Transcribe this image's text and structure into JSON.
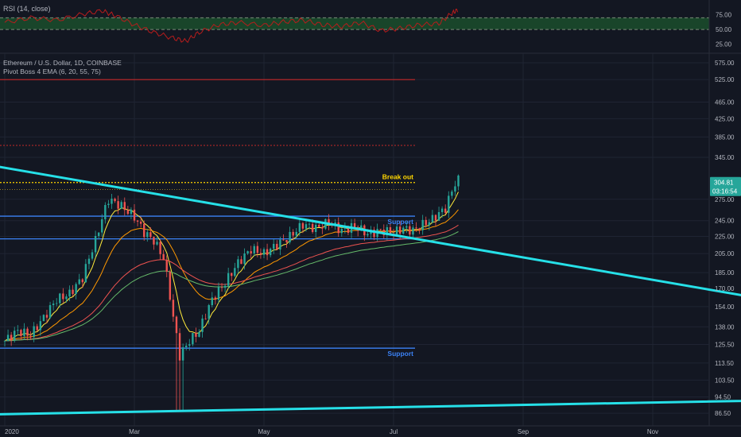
{
  "rsi_panel": {
    "title": "RSI (14, close)",
    "levels": [
      "75.00",
      "50.00",
      "25.00"
    ],
    "level_values": [
      75,
      50,
      25
    ],
    "band": [
      50,
      70
    ],
    "ylim": [
      12,
      95
    ]
  },
  "main_panel": {
    "symbol_title": "Ethereum / U.S. Dollar, 1D, COINBASE",
    "indicator": "Pivot Boss 4 EMA (6, 20, 55, 75)",
    "price_ticks": [
      "575.00",
      "525.00",
      "465.00",
      "425.00",
      "385.00",
      "345.00",
      "275.00",
      "245.00",
      "225.00",
      "205.00",
      "185.00",
      "170.00",
      "154.00",
      "138.00",
      "125.50",
      "113.50",
      "103.50",
      "94.50",
      "86.50"
    ],
    "price_tick_values": [
      575,
      525,
      465,
      425,
      385,
      345,
      275,
      245,
      225,
      205,
      185,
      170,
      154,
      138,
      125.5,
      113.5,
      103.5,
      94.5,
      86.5
    ],
    "last_price": "304.81",
    "countdown": "03:16:54",
    "time_ticks": [
      "2020",
      "Mar",
      "May",
      "Jul",
      "Sep",
      "Nov",
      "2021",
      "Mar",
      "May",
      "Jul",
      "Sep",
      "Nov"
    ],
    "annotations": {
      "breakout": "Break out",
      "support_upper": "Support",
      "support_lower": "Support"
    },
    "levels": {
      "red_line": 525,
      "red_dotted": 368,
      "breakout_dotted": 301,
      "last_dotted": 290,
      "support_upper_a": 251,
      "support_upper_b": 222,
      "support_lower": 123
    }
  },
  "colors": {
    "background": "#131722",
    "grid": "#1f2433",
    "text": "#b2b5be",
    "cyan_trend": "#26e0e8",
    "support_blue": "#3b82f6",
    "breakout_yellow": "#ffd600",
    "red_line": "#c62828",
    "rsi_line": "#b71c1c",
    "rsi_band": "#1b4d2b",
    "price_tag": "#26a69a",
    "candle_up": "#26a69a",
    "candle_down": "#ef5350",
    "ema_colors": [
      "#ffeb3b",
      "#ff9800",
      "#ef5350",
      "#66bb6a"
    ]
  },
  "chart_data": {
    "type": "candlestick",
    "title": "Ethereum / U.S. Dollar, 1D, COINBASE",
    "x_unit": "month_index_from_Jan_2020",
    "xlim": [
      0.0,
      23.6
    ],
    "ylim_log": [
      84,
      590
    ],
    "close_path": [
      [
        0.0,
        128
      ],
      [
        0.2,
        135
      ],
      [
        0.4,
        132
      ],
      [
        0.6,
        145
      ],
      [
        0.8,
        160
      ],
      [
        1.0,
        165
      ],
      [
        1.2,
        180
      ],
      [
        1.4,
        220
      ],
      [
        1.6,
        275
      ],
      [
        1.8,
        265
      ],
      [
        2.0,
        250
      ],
      [
        2.15,
        230
      ],
      [
        2.3,
        220
      ],
      [
        2.45,
        200
      ],
      [
        2.6,
        145
      ],
      [
        2.7,
        118
      ],
      [
        2.85,
        128
      ],
      [
        3.0,
        135
      ],
      [
        3.2,
        160
      ],
      [
        3.4,
        175
      ],
      [
        3.6,
        195
      ],
      [
        3.8,
        210
      ],
      [
        4.0,
        205
      ],
      [
        4.2,
        215
      ],
      [
        4.4,
        225
      ],
      [
        4.6,
        240
      ],
      [
        4.8,
        235
      ],
      [
        5.0,
        243
      ],
      [
        5.2,
        232
      ],
      [
        5.4,
        238
      ],
      [
        5.6,
        228
      ],
      [
        5.8,
        232
      ],
      [
        6.0,
        230
      ],
      [
        6.15,
        235
      ],
      [
        6.3,
        232
      ],
      [
        6.45,
        240
      ],
      [
        6.6,
        247
      ],
      [
        6.8,
        262
      ],
      [
        6.95,
        300
      ],
      [
        7.0,
        305
      ]
    ],
    "series": [
      {
        "name": "EMA 6",
        "offset": 0
      },
      {
        "name": "EMA 20",
        "offset": 0
      },
      {
        "name": "EMA 55",
        "offset": 0
      },
      {
        "name": "EMA 75",
        "offset": 0
      }
    ],
    "trendlines": [
      {
        "from": [
          -0.2,
          330
        ],
        "to": [
          12.6,
          152
        ]
      },
      {
        "from": [
          -0.2,
          86
        ],
        "to": [
          14.0,
          94
        ]
      }
    ],
    "horizontal_levels": [
      525,
      368,
      301,
      290,
      251,
      222,
      123
    ],
    "rsi_path": [
      [
        0.0,
        62
      ],
      [
        0.4,
        70
      ],
      [
        0.8,
        66
      ],
      [
        1.2,
        76
      ],
      [
        1.5,
        82
      ],
      [
        1.7,
        74
      ],
      [
        2.0,
        58
      ],
      [
        2.3,
        45
      ],
      [
        2.6,
        35
      ],
      [
        2.8,
        30
      ],
      [
        3.0,
        45
      ],
      [
        3.3,
        58
      ],
      [
        3.6,
        62
      ],
      [
        4.0,
        57
      ],
      [
        4.3,
        63
      ],
      [
        4.6,
        66
      ],
      [
        4.9,
        58
      ],
      [
        5.2,
        55
      ],
      [
        5.5,
        62
      ],
      [
        5.8,
        48
      ],
      [
        6.1,
        52
      ],
      [
        6.4,
        58
      ],
      [
        6.7,
        60
      ],
      [
        6.9,
        78
      ],
      [
        7.0,
        84
      ]
    ]
  }
}
